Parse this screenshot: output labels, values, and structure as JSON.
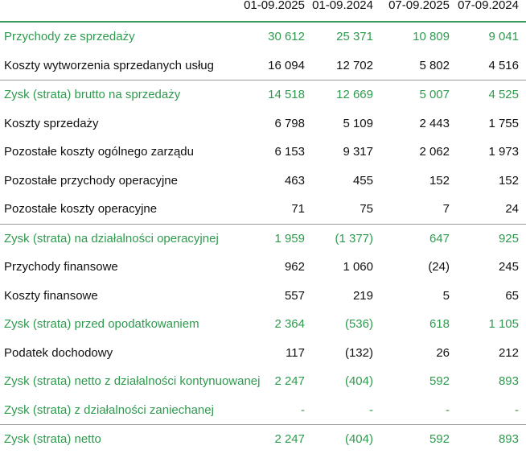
{
  "headers": [
    "01-09.2025",
    "01-09.2024",
    "07-09.2025",
    "07-09.2024"
  ],
  "rows": [
    {
      "label": "Przychody ze sprzedaży",
      "values": [
        "30 612",
        "25 371",
        "10 809",
        "9 041"
      ]
    },
    {
      "label": "Koszty wytworzenia sprzedanych usług",
      "values": [
        "16 094",
        "12 702",
        "5 802",
        "4 516"
      ]
    },
    {
      "label": "Zysk (strata) brutto na sprzedaży",
      "values": [
        "14 518",
        "12 669",
        "5 007",
        "4 525"
      ]
    },
    {
      "label": "Koszty sprzedaży",
      "values": [
        "6 798",
        "5 109",
        "2 443",
        "1 755"
      ]
    },
    {
      "label": "Pozostałe koszty ogólnego zarządu",
      "values": [
        "6 153",
        "9 317",
        "2 062",
        "1 973"
      ]
    },
    {
      "label": "Pozostałe przychody operacyjne",
      "values": [
        "463",
        "455",
        "152",
        "152"
      ]
    },
    {
      "label": "Pozostałe koszty operacyjne",
      "values": [
        "71",
        "75",
        "7",
        "24"
      ]
    },
    {
      "label": "Zysk (strata) na działalności operacyjnej",
      "values": [
        "1 959",
        "(1 377)",
        "647",
        "925"
      ]
    },
    {
      "label": "Przychody finansowe",
      "values": [
        "962",
        "1 060",
        "(24)",
        "245"
      ]
    },
    {
      "label": "Koszty finansowe",
      "values": [
        "557",
        "219",
        "5",
        "65"
      ]
    },
    {
      "label": "Zysk (strata) przed opodatkowaniem",
      "values": [
        "2 364",
        "(536)",
        "618",
        "1 105"
      ]
    },
    {
      "label": "Podatek dochodowy",
      "values": [
        "117",
        "(132)",
        "26",
        "212"
      ]
    },
    {
      "label": "Zysk (strata) netto z działalności kontynuowanej",
      "values": [
        "2 247",
        "(404)",
        "592",
        "893"
      ]
    },
    {
      "label": "Zysk (strata) z działalności zaniechanej",
      "values": [
        "-",
        "-",
        "-",
        "-"
      ]
    },
    {
      "label": "Zysk (strata) netto",
      "values": [
        "2 247",
        "(404)",
        "592",
        "893"
      ]
    }
  ],
  "colors": {
    "highlight_green": "#2e9a4e",
    "header_rule": "#3a9a5b",
    "row_rule": "#9a9a9a",
    "text": "#111111"
  }
}
